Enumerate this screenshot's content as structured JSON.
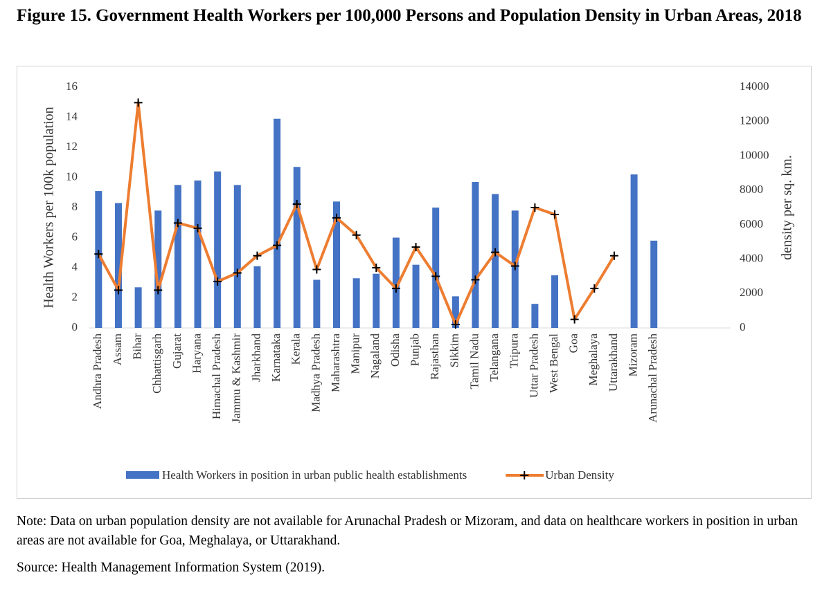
{
  "chart_data": {
    "type": "bar-line",
    "title": "Figure 15. Government Health Workers per 100,000 Persons and Population Density in Urban Areas, 2018",
    "ylabel": "Health Workers per 100k population",
    "y2label": "density per sq. km.",
    "categories": [
      "Andhra Pradesh",
      "Assam",
      "Bihar",
      "Chhattisgarh",
      "Gujarat",
      "Haryana",
      "Himachal Pradesh",
      "Jammu & Kashmir",
      "Jharkhand",
      "Karnataka",
      "Kerala",
      "Madhya Pradesh",
      "Maharashtra",
      "Manipur",
      "Nagaland",
      "Odisha",
      "Punjab",
      "Rajasthan",
      "Sikkim",
      "Tamil Nadu",
      "Telangana",
      "Tripura",
      "Uttar Pradesh",
      "West Bengal",
      "Goa",
      "Meghalaya",
      "Uttarakhand",
      "Mizoram",
      "Arunachal Pradesh"
    ],
    "series": [
      {
        "name": "Health Workers in position in urban public health establishments",
        "type": "bar",
        "color": "#4472c4",
        "values": [
          9.1,
          8.3,
          2.7,
          7.8,
          9.5,
          9.8,
          10.4,
          9.5,
          4.1,
          13.9,
          10.7,
          3.2,
          8.4,
          3.3,
          3.6,
          6.0,
          4.2,
          8.0,
          2.1,
          9.7,
          8.9,
          7.8,
          1.6,
          3.5,
          null,
          null,
          null,
          10.2,
          5.8
        ]
      },
      {
        "name": "Urban Density",
        "type": "line",
        "axis": "y2",
        "color": "#ed7d31",
        "values": [
          4300,
          2200,
          13100,
          2200,
          6100,
          5800,
          2700,
          3200,
          4200,
          4800,
          7200,
          3400,
          6400,
          5400,
          3500,
          2300,
          4700,
          3000,
          200,
          2800,
          4400,
          3600,
          7000,
          6600,
          500,
          2300,
          4200,
          null,
          null
        ]
      }
    ],
    "ylim": [
      0,
      16
    ],
    "yticks": [
      0,
      2,
      4,
      6,
      8,
      10,
      12,
      14,
      16
    ],
    "y2lim": [
      0,
      14000
    ],
    "y2ticks": [
      0,
      2000,
      4000,
      6000,
      8000,
      10000,
      12000,
      14000
    ],
    "grid": false,
    "legend": "bottom"
  },
  "note": "Note: Data on urban population density are not available for Arunachal Pradesh or Mizoram, and data on healthcare workers in position in urban areas are not available for Goa, Meghalaya, or Uttarakhand.",
  "source": "Source: Health Management Information System (2019)."
}
